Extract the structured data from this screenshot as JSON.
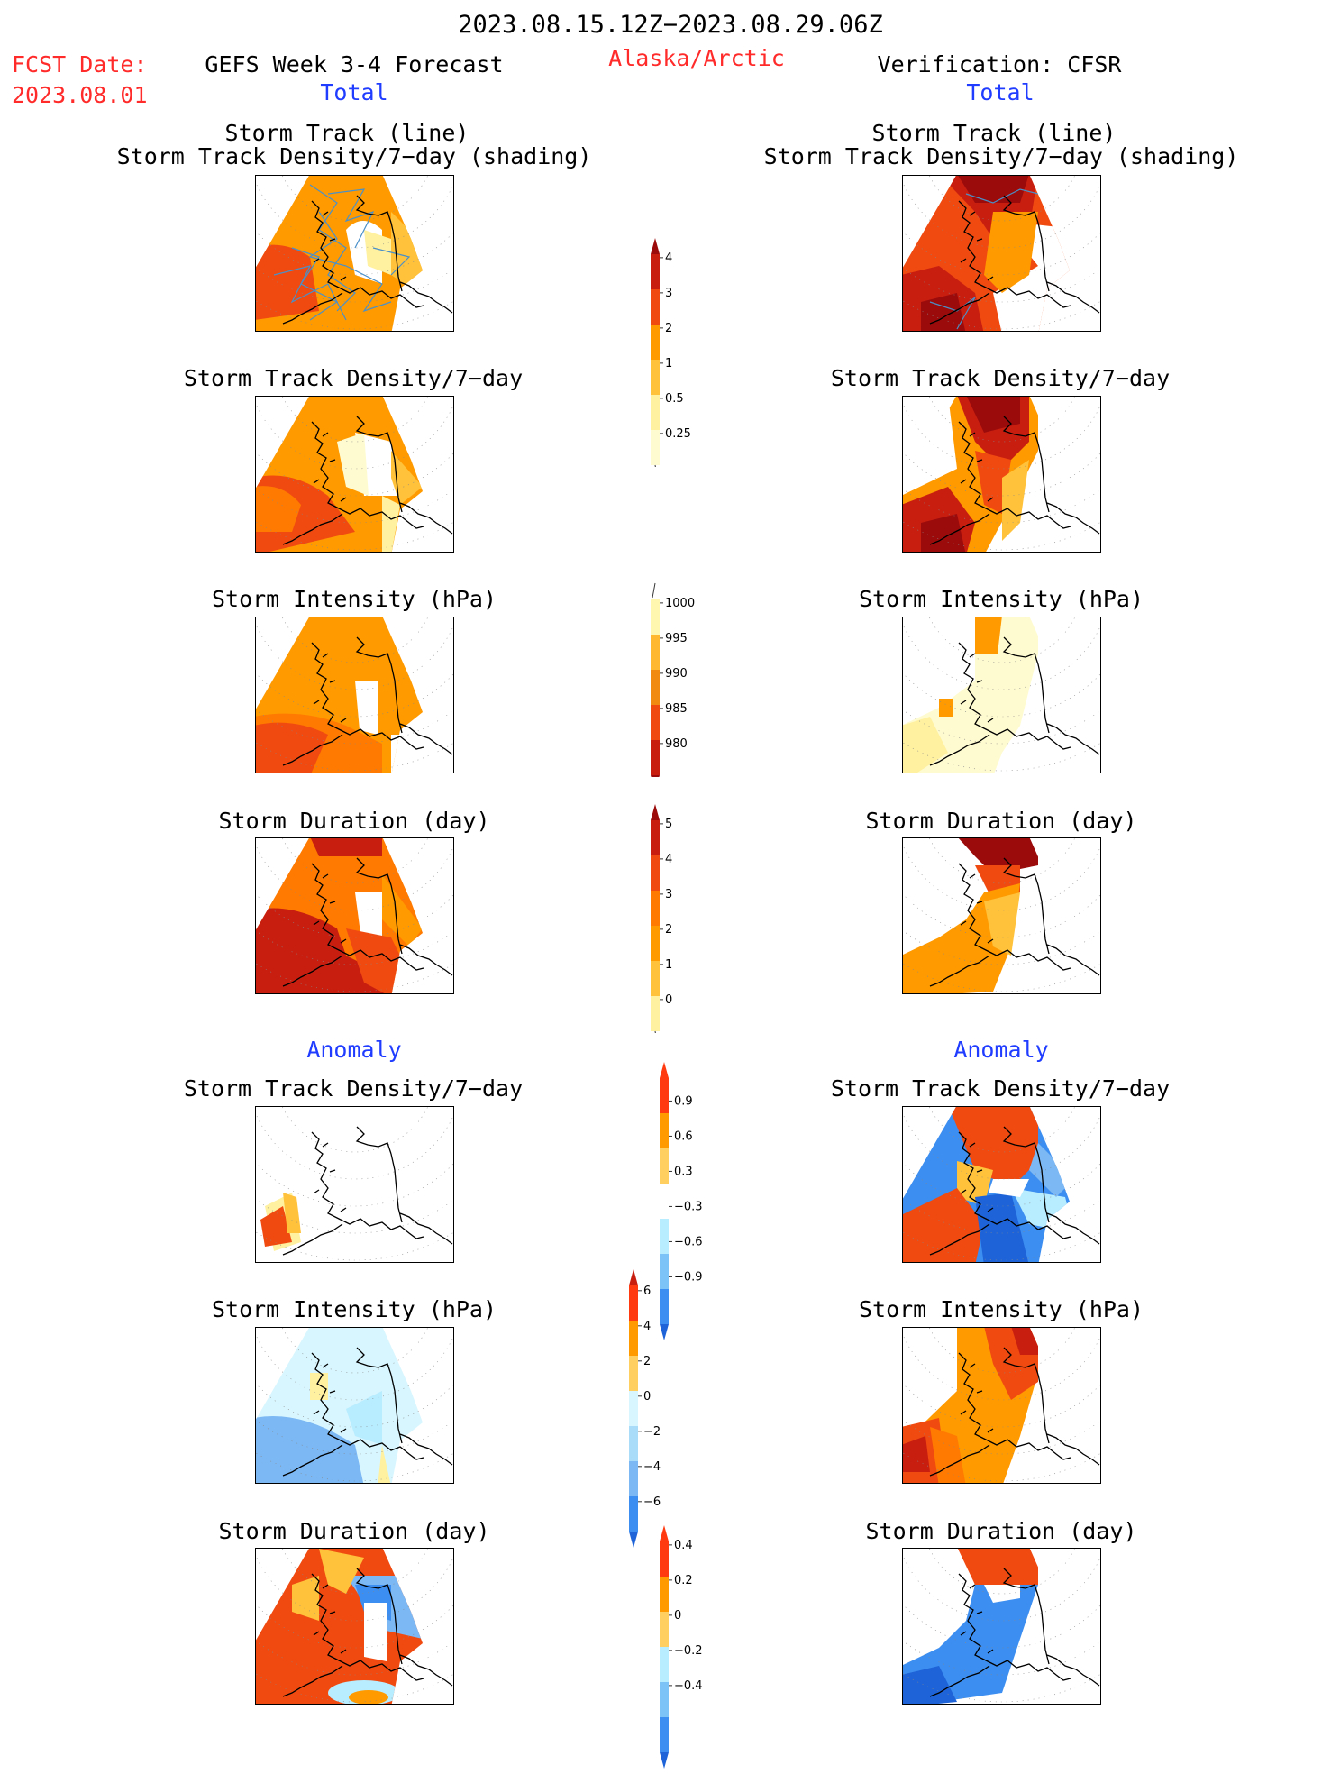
{
  "header": {
    "date_range": "2023.08.15.12Z−2023.08.29.06Z",
    "fcst_label": "FCST Date:",
    "fcst_date": "2023.08.01",
    "forecast_title": "GEFS Week 3-4 Forecast",
    "region": "Alaska/Arctic",
    "verification": "Verification: CFSR"
  },
  "sections": {
    "total_left": "Total",
    "total_right": "Total",
    "anomaly_left": "Anomaly",
    "anomaly_right": "Anomaly"
  },
  "panel_titles": {
    "track_line": "Storm Track (line)",
    "track_shading": "Storm Track Density/7−day (shading)",
    "density": "Storm Track Density/7−day",
    "intensity": "Storm Intensity (hPa)",
    "duration": "Storm Duration (day)"
  },
  "colorbars": {
    "density_total": {
      "labels": [
        "4",
        "3",
        "2",
        "1",
        "0.5",
        "0.25"
      ],
      "colors": [
        "#c81e10",
        "#f04a10",
        "#ff9a00",
        "#ffc23a",
        "#fff1a0",
        "#fffbd0"
      ]
    },
    "intensity_total": {
      "labels": [
        "1000",
        "995",
        "990",
        "985",
        "980"
      ],
      "colors": [
        "#fff6b0",
        "#ffb830",
        "#f08a10",
        "#f04a10",
        "#c81e10"
      ]
    },
    "duration_total": {
      "labels": [
        "5",
        "4",
        "3",
        "2",
        "1",
        "0"
      ],
      "colors": [
        "#c81e10",
        "#f04a10",
        "#ff7a00",
        "#ff9a00",
        "#ffc23a",
        "#fff1a0"
      ]
    },
    "density_anom": {
      "labels": [
        "0.9",
        "0.6",
        "0.3",
        "−0.3",
        "−0.6",
        "−0.9"
      ],
      "colors": [
        "#ff3a10",
        "#ff9a00",
        "#ffd060",
        "#ffffff",
        "#b8ecff",
        "#7cc4f8",
        "#3c8ef0"
      ]
    },
    "intensity_anom": {
      "labels": [
        "6",
        "4",
        "2",
        "0",
        "−2",
        "−4",
        "−6"
      ],
      "colors": [
        "#ff3a10",
        "#ff9a00",
        "#ffd060",
        "#d8f6ff",
        "#a8dcf8",
        "#7cb8f4",
        "#3c8ef0"
      ]
    },
    "duration_anom": {
      "labels": [
        "0.4",
        "0.2",
        "0",
        "−0.2",
        "−0.4"
      ],
      "colors": [
        "#ff3a10",
        "#ff9a00",
        "#ffd060",
        "#b8ecff",
        "#7cc4f8",
        "#3c8ef0"
      ]
    }
  },
  "chart_data": [
    {
      "type": "heatmap",
      "title": "Storm Track (line) / Storm Track Density/7−day (shading)",
      "column": "Total",
      "source": "GEFS Week 3-4 Forecast"
    },
    {
      "type": "heatmap",
      "title": "Storm Track (line) / Storm Track Density/7−day (shading)",
      "column": "Total",
      "source": "Verification: CFSR"
    },
    {
      "type": "heatmap",
      "title": "Storm Track Density/7−day",
      "column": "Total",
      "source": "GEFS Week 3-4 Forecast"
    },
    {
      "type": "heatmap",
      "title": "Storm Track Density/7−day",
      "column": "Total",
      "source": "Verification: CFSR"
    },
    {
      "type": "heatmap",
      "title": "Storm Intensity (hPa)",
      "column": "Total",
      "source": "GEFS Week 3-4 Forecast"
    },
    {
      "type": "heatmap",
      "title": "Storm Intensity (hPa)",
      "column": "Total",
      "source": "Verification: CFSR"
    },
    {
      "type": "heatmap",
      "title": "Storm Duration (day)",
      "column": "Total",
      "source": "GEFS Week 3-4 Forecast"
    },
    {
      "type": "heatmap",
      "title": "Storm Duration (day)",
      "column": "Total",
      "source": "Verification: CFSR"
    },
    {
      "type": "heatmap",
      "title": "Storm Track Density/7−day",
      "column": "Anomaly",
      "source": "GEFS Week 3-4 Forecast"
    },
    {
      "type": "heatmap",
      "title": "Storm Track Density/7−day",
      "column": "Anomaly",
      "source": "Verification: CFSR"
    },
    {
      "type": "heatmap",
      "title": "Storm Intensity (hPa)",
      "column": "Anomaly",
      "source": "GEFS Week 3-4 Forecast"
    },
    {
      "type": "heatmap",
      "title": "Storm Intensity (hPa)",
      "column": "Anomaly",
      "source": "Verification: CFSR"
    },
    {
      "type": "heatmap",
      "title": "Storm Duration (day)",
      "column": "Anomaly",
      "source": "GEFS Week 3-4 Forecast"
    },
    {
      "type": "heatmap",
      "title": "Storm Duration (day)",
      "column": "Anomaly",
      "source": "Verification: CFSR"
    }
  ]
}
